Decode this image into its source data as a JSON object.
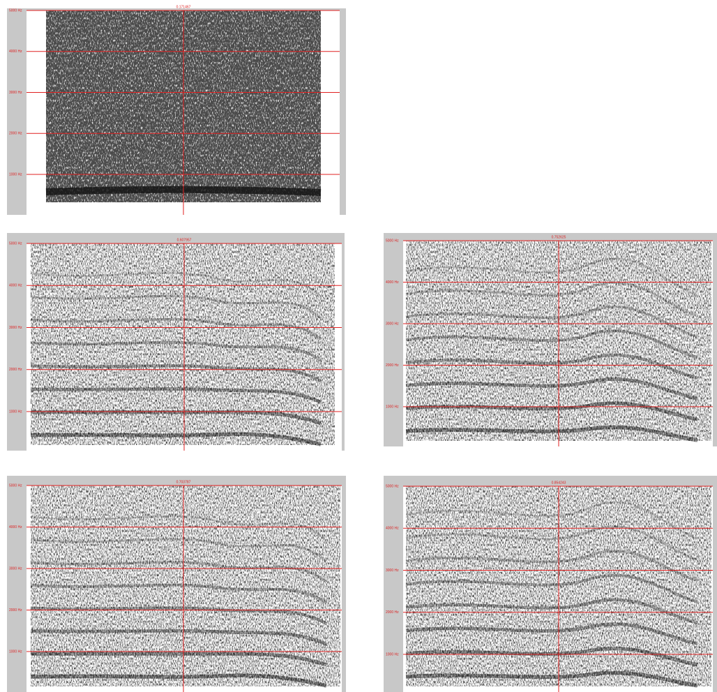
{
  "panels": [
    {
      "cursor_time": "0.171467",
      "freq_labels": [
        "5000 Hz",
        "4000 Hz",
        "3000 Hz",
        "2000 Hz",
        "1000 Hz"
      ]
    },
    {
      "cursor_time": "0.607957",
      "freq_labels": [
        "5000 Hz",
        "4000 Hz",
        "3000 Hz",
        "2000 Hz",
        "1000 Hz"
      ]
    },
    {
      "cursor_time": "0.752625",
      "freq_labels": [
        "5000 Hz",
        "4000 Hz",
        "3000 Hz",
        "2000 Hz",
        "1000 Hz"
      ]
    },
    {
      "cursor_time": "0.703787",
      "freq_labels": [
        "5000 Hz",
        "4000 Hz",
        "3000 Hz",
        "2000 Hz",
        "1000 Hz"
      ]
    },
    {
      "cursor_time": "0.854243",
      "freq_labels": [
        "5000 Hz",
        "4000 Hz",
        "3000 Hz",
        "2000 Hz",
        "1000 Hz"
      ]
    }
  ]
}
